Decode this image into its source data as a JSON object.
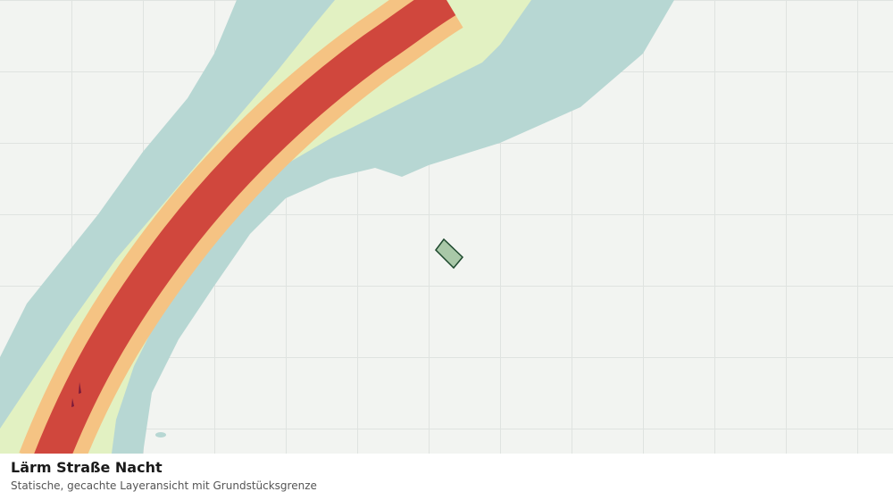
{
  "layer": {
    "title": "Lärm Straße Nacht",
    "subtitle": "Statische, gecachte Layeransicht mit Grundstücksgrenze"
  }
}
